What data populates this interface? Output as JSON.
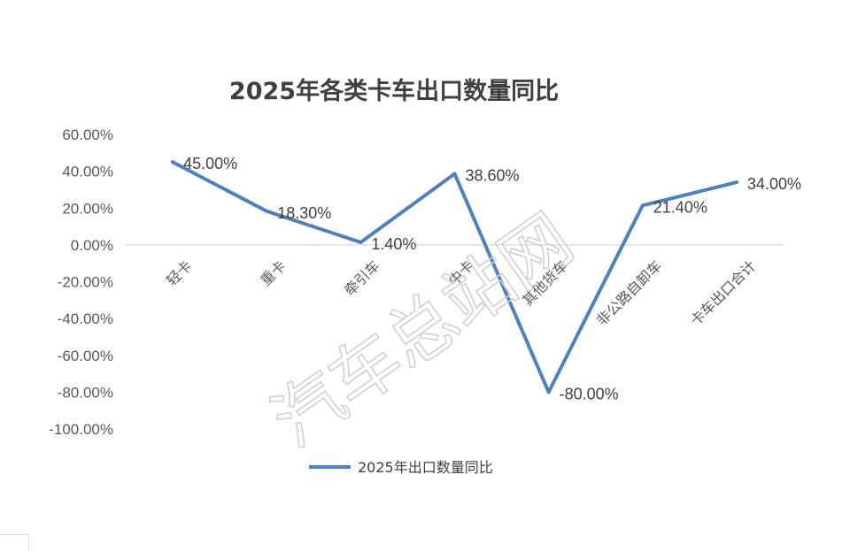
{
  "watermark": "汽车总站网",
  "chart_data": {
    "type": "line",
    "title": "2025年各类卡车出口数量同比",
    "categories": [
      "轻卡",
      "重卡",
      "牵引车",
      "中卡",
      "其他货车",
      "非公路自卸车",
      "卡车出口合计"
    ],
    "series": [
      {
        "name": "2025年出口数量同比",
        "values": [
          45.0,
          18.3,
          1.4,
          38.6,
          -80.0,
          21.4,
          34.0
        ],
        "labels": [
          "45.00%",
          "18.30%",
          "1.40%",
          "38.60%",
          "-80.00%",
          "21.40%",
          "34.00%"
        ],
        "color": "#4F81BD"
      }
    ],
    "ylim": [
      -100,
      60
    ],
    "yticks": [
      60,
      40,
      20,
      0,
      -20,
      -40,
      -60,
      -80,
      -100
    ],
    "ytick_labels": [
      "60.00%",
      "40.00%",
      "20.00%",
      "0.00%",
      "-20.00%",
      "-40.00%",
      "-60.00%",
      "-80.00%",
      "-100.00%"
    ],
    "legend": "bottom",
    "grid": false
  }
}
